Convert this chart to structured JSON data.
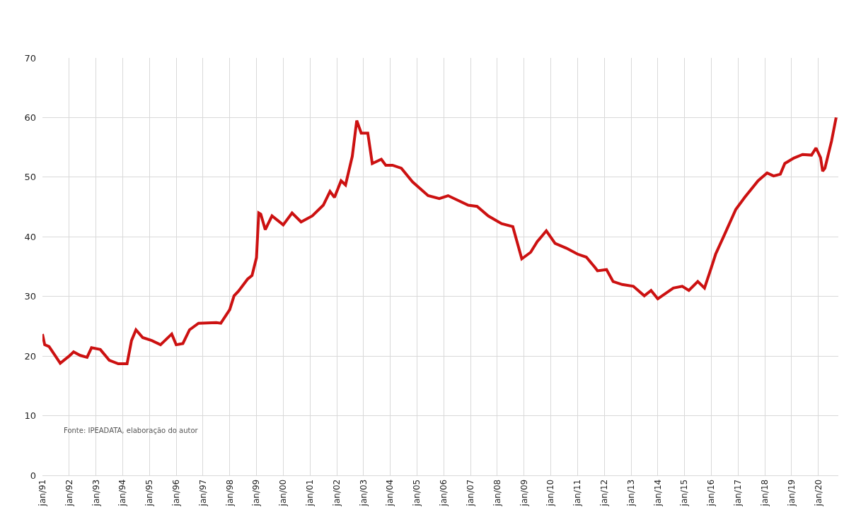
{
  "chart_data": {
    "type": "line",
    "annotations": [
      "Fonte: IPEADATA, elaboração do autor"
    ],
    "x": [
      "1991-01",
      "1991-02",
      "1991-04",
      "1991-09",
      "1992-01",
      "1992-03",
      "1992-06",
      "1992-09",
      "1992-11",
      "1993-03",
      "1993-07",
      "1993-11",
      "1994-03",
      "1994-05",
      "1994-07",
      "1994-10",
      "1995-02",
      "1995-06",
      "1995-11",
      "1996-01",
      "1996-04",
      "1996-07",
      "1996-11",
      "1997-07",
      "1997-09",
      "1998-01",
      "1998-03",
      "1998-05",
      "1998-09",
      "1998-11",
      "1999-01",
      "1999-02",
      "1999-03",
      "1999-05",
      "1999-08",
      "2000-01",
      "2000-05",
      "2000-09",
      "2001-02",
      "2001-07",
      "2001-10",
      "2001-12",
      "2002-03",
      "2002-05",
      "2002-08",
      "2002-10",
      "2002-12",
      "2003-03",
      "2003-05",
      "2003-09",
      "2003-11",
      "2004-02",
      "2004-06",
      "2004-11",
      "2005-06",
      "2005-11",
      "2006-03",
      "2006-12",
      "2007-04",
      "2007-09",
      "2008-03",
      "2008-08",
      "2008-12",
      "2009-04",
      "2009-07",
      "2009-11",
      "2010-03",
      "2010-08",
      "2011-01",
      "2011-05",
      "2011-09",
      "2011-10",
      "2012-02",
      "2012-05",
      "2012-09",
      "2013-02",
      "2013-07",
      "2013-10",
      "2014-01",
      "2014-08",
      "2014-12",
      "2015-03",
      "2015-07",
      "2015-10",
      "2016-01",
      "2016-03",
      "2016-07",
      "2016-12",
      "2017-04",
      "2017-10",
      "2018-02",
      "2018-05",
      "2018-08",
      "2018-10",
      "2019-02",
      "2019-06",
      "2019-10",
      "2019-12",
      "2020-02",
      "2020-03",
      "2020-04",
      "2020-07",
      "2020-09"
    ],
    "series": [
      {
        "color": "#cc1111",
        "values": [
          23.7,
          21.9,
          21.6,
          18.8,
          20.0,
          20.7,
          20.1,
          19.8,
          21.4,
          21.1,
          19.3,
          18.7,
          18.7,
          22.6,
          24.4,
          23.1,
          22.6,
          21.9,
          23.7,
          21.9,
          22.1,
          24.4,
          25.5,
          25.6,
          25.5,
          27.8,
          30.1,
          30.9,
          32.9,
          33.5,
          36.5,
          44.0,
          43.8,
          41.2,
          43.5,
          42.0,
          44.0,
          42.5,
          43.5,
          45.3,
          47.6,
          46.6,
          49.4,
          48.7,
          53.5,
          59.5,
          57.4,
          57.4,
          52.3,
          53.0,
          52.0,
          52.0,
          51.5,
          49.2,
          46.9,
          46.4,
          46.9,
          45.3,
          45.1,
          43.5,
          42.2,
          41.7,
          36.3,
          37.4,
          39.2,
          41.0,
          38.9,
          38.1,
          37.1,
          36.6,
          34.8,
          34.3,
          34.5,
          32.5,
          32.0,
          31.7,
          30.1,
          31.0,
          29.6,
          31.4,
          31.7,
          31.0,
          32.5,
          31.4,
          34.8,
          37.1,
          40.4,
          44.6,
          46.6,
          49.4,
          50.7,
          50.2,
          50.5,
          52.3,
          53.2,
          53.8,
          53.7,
          54.9,
          53.3,
          51.0,
          51.5,
          56.1,
          60.0
        ]
      }
    ],
    "xlim": [
      "1991-01",
      "2020-10"
    ],
    "xticks": [
      {
        "value": "1991-01",
        "label": "jan/91"
      },
      {
        "value": "1992-01",
        "label": "jan/92"
      },
      {
        "value": "1993-01",
        "label": "jan/93"
      },
      {
        "value": "1994-01",
        "label": "jan/94"
      },
      {
        "value": "1995-01",
        "label": "jan/95"
      },
      {
        "value": "1996-01",
        "label": "jan/96"
      },
      {
        "value": "1997-01",
        "label": "jan/97"
      },
      {
        "value": "1998-01",
        "label": "jan/98"
      },
      {
        "value": "1999-01",
        "label": "jan/99"
      },
      {
        "value": "2000-01",
        "label": "jan/00"
      },
      {
        "value": "2001-01",
        "label": "jan/01"
      },
      {
        "value": "2002-01",
        "label": "jan/02"
      },
      {
        "value": "2003-01",
        "label": "jan/03"
      },
      {
        "value": "2004-01",
        "label": "jan/04"
      },
      {
        "value": "2005-01",
        "label": "jan/05"
      },
      {
        "value": "2006-01",
        "label": "jan/06"
      },
      {
        "value": "2007-01",
        "label": "jan/07"
      },
      {
        "value": "2008-01",
        "label": "jan/08"
      },
      {
        "value": "2009-01",
        "label": "jan/09"
      },
      {
        "value": "2010-01",
        "label": "jan/10"
      },
      {
        "value": "2011-01",
        "label": "jan/11"
      },
      {
        "value": "2012-01",
        "label": "jan/12"
      },
      {
        "value": "2013-01",
        "label": "jan/13"
      },
      {
        "value": "2014-01",
        "label": "jan/14"
      },
      {
        "value": "2015-01",
        "label": "jan/15"
      },
      {
        "value": "2016-01",
        "label": "jan/16"
      },
      {
        "value": "2017-01",
        "label": "jan/17"
      },
      {
        "value": "2018-01",
        "label": "jan/18"
      },
      {
        "value": "2019-01",
        "label": "jan/19"
      },
      {
        "value": "2020-01",
        "label": "jan/20"
      }
    ],
    "ylim": [
      0,
      70
    ],
    "yticks": [
      0,
      10,
      20,
      30,
      40,
      50,
      60,
      70
    ],
    "grid": true,
    "marker": "none",
    "line_style": "solid"
  }
}
